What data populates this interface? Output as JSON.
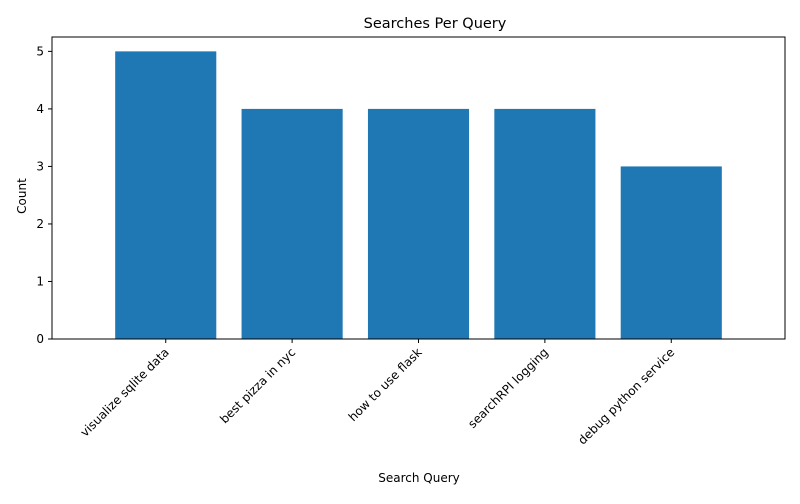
{
  "chart_data": {
    "type": "bar",
    "title": "Searches Per Query",
    "xlabel": "Search Query",
    "ylabel": "Count",
    "categories": [
      "visualize sqlite data",
      "best pizza in nyc",
      "how to use flask",
      "searchRPI logging",
      "debug python service"
    ],
    "values": [
      5,
      4,
      4,
      4,
      3
    ],
    "ylim": [
      0,
      5.25
    ],
    "yticks": [
      0,
      1,
      2,
      3,
      4,
      5
    ],
    "grid": false,
    "bar_color": "#1f77b4"
  }
}
